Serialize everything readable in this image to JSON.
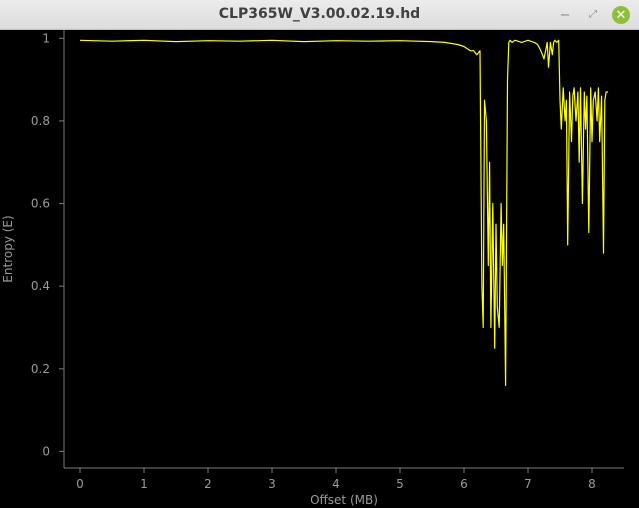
{
  "window": {
    "title": "CLP365W_V3.00.02.19.hd",
    "minimize_glyph": "−",
    "maximize_glyph": "⤢",
    "close_glyph": "✕"
  },
  "chart_data": {
    "type": "line",
    "title": "",
    "xlabel": "Offset (MB)",
    "ylabel": "Entropy (E)",
    "xlim": [
      -0.25,
      8.5
    ],
    "ylim": [
      -0.04,
      1.02
    ],
    "xticks": [
      0,
      1,
      2,
      3,
      4,
      5,
      6,
      7,
      8
    ],
    "yticks": [
      0,
      0.2,
      0.4,
      0.6,
      0.8,
      1
    ],
    "grid": false,
    "line_color": "#ffff00",
    "series": [
      {
        "x": [
          0,
          0.5,
          1,
          1.5,
          2,
          2.5,
          3,
          3.5,
          4,
          4.5,
          5,
          5.5,
          5.7,
          5.9,
          6.0,
          6.1,
          6.15,
          6.2,
          6.25,
          6.28,
          6.3,
          6.32,
          6.35,
          6.38,
          6.4,
          6.42,
          6.45,
          6.48,
          6.5,
          6.52,
          6.55,
          6.58,
          6.6,
          6.62,
          6.65,
          6.68,
          6.7,
          6.72,
          6.75,
          6.8,
          6.9,
          7.0,
          7.1,
          7.15,
          7.2,
          7.25,
          7.3,
          7.32,
          7.35,
          7.38,
          7.4,
          7.42,
          7.45,
          7.48,
          7.5,
          7.52,
          7.55,
          7.58,
          7.6,
          7.62,
          7.65,
          7.68,
          7.7,
          7.72,
          7.75,
          7.78,
          7.8,
          7.82,
          7.85,
          7.88,
          7.9,
          7.92,
          7.95,
          7.98,
          8.0,
          8.02,
          8.05,
          8.08,
          8.1,
          8.12,
          8.15,
          8.18,
          8.2,
          8.22,
          8.25
        ],
        "y": [
          0.995,
          0.993,
          0.995,
          0.992,
          0.994,
          0.993,
          0.995,
          0.992,
          0.994,
          0.993,
          0.994,
          0.992,
          0.99,
          0.985,
          0.98,
          0.97,
          0.97,
          0.96,
          0.97,
          0.4,
          0.3,
          0.85,
          0.8,
          0.45,
          0.7,
          0.3,
          0.6,
          0.25,
          0.55,
          0.35,
          0.3,
          0.6,
          0.45,
          0.55,
          0.16,
          0.9,
          0.99,
          0.995,
          0.99,
          0.995,
          0.99,
          0.995,
          0.99,
          0.985,
          0.97,
          0.95,
          0.99,
          0.93,
          0.99,
          0.96,
          0.99,
          0.995,
          0.99,
          0.995,
          0.85,
          0.78,
          0.88,
          0.8,
          0.85,
          0.5,
          0.87,
          0.75,
          0.86,
          0.88,
          0.8,
          0.87,
          0.7,
          0.88,
          0.6,
          0.87,
          0.78,
          0.86,
          0.53,
          0.88,
          0.75,
          0.85,
          0.87,
          0.8,
          0.88,
          0.75,
          0.86,
          0.48,
          0.85,
          0.87,
          0.87
        ]
      }
    ]
  }
}
